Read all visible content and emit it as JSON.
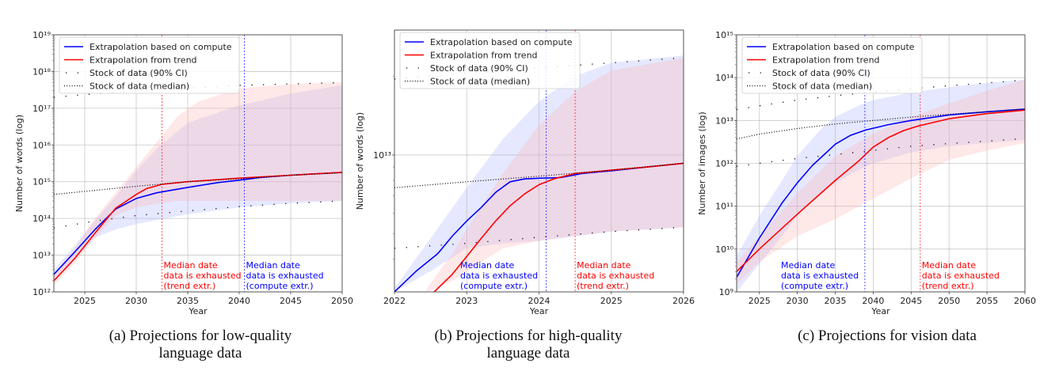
{
  "figure": {
    "captions": [
      "(a) Projections for low-quality language data",
      "(b) Projections for high-quality language data",
      "(c) Projections for vision data"
    ],
    "caption_lines": [
      [
        "(a) Projections for low-quality",
        "language data"
      ],
      [
        "(b) Projections for high-quality",
        "language data"
      ],
      [
        "(c) Projections for vision data"
      ]
    ]
  },
  "colors": {
    "compute": "#0000ff",
    "trend": "#ff0000",
    "stock": "#000000",
    "compute_band": "#aab4ff",
    "trend_band": "#ffb4b4",
    "grid": "#b0b0b0"
  },
  "chart_data": [
    {
      "type": "line",
      "id": "a",
      "title": "",
      "xlabel": "Year",
      "ylabel": "Number of words (log)",
      "yscale": "log",
      "xlim": [
        2022,
        2050
      ],
      "ylim": [
        1000000000000.0,
        1e+19
      ],
      "xticks": [
        2025,
        2030,
        2035,
        2040,
        2045,
        2050
      ],
      "yticks_exp": [
        12,
        13,
        14,
        15,
        16,
        17,
        18,
        19
      ],
      "grid": true,
      "legend": {
        "placement": "top-left",
        "entries": [
          {
            "label": "Extrapolation based on compute",
            "style": "solid-blue"
          },
          {
            "label": "Extrapolation from trend",
            "style": "solid-red"
          },
          {
            "label": "Stock of data (90% CI)",
            "style": "sparse-dots"
          },
          {
            "label": "Stock of data (median)",
            "style": "dense-dots"
          }
        ]
      },
      "series": [
        {
          "name": "Extrapolation based on compute",
          "x": [
            2022,
            2024,
            2026,
            2028,
            2030,
            2032,
            2035,
            2038,
            2040,
            2042,
            2045,
            2050
          ],
          "values": [
            3000000000000.0,
            12000000000000.0,
            50000000000000.0,
            180000000000000.0,
            350000000000000.0,
            500000000000000.0,
            700000000000000.0,
            950000000000000.0,
            1100000000000000.0,
            1300000000000000.0,
            1500000000000000.0,
            1800000000000000.0
          ]
        },
        {
          "name": "Extrapolation from trend",
          "x": [
            2022,
            2024,
            2026,
            2028,
            2030,
            2031,
            2032.5,
            2035,
            2040,
            2045,
            2050
          ],
          "values": [
            2000000000000.0,
            8000000000000.0,
            40000000000000.0,
            190000000000000.0,
            450000000000000.0,
            650000000000000.0,
            850000000000000.0,
            1000000000000000.0,
            1250000000000000.0,
            1500000000000000.0,
            1800000000000000.0
          ]
        },
        {
          "name": "Stock of data (median)",
          "x": [
            2022,
            2030,
            2035,
            2040,
            2045,
            2050
          ],
          "values": [
            450000000000000.0,
            750000000000000.0,
            1000000000000000.0,
            1200000000000000.0,
            1500000000000000.0,
            1750000000000000.0
          ]
        },
        {
          "name": "Stock of data (90% CI) upper",
          "x": [
            2022,
            2026,
            2030,
            2035,
            2040,
            2045,
            2050
          ],
          "values": [
            2e+17,
            2.5e+17,
            3e+17,
            3.5e+17,
            4.2e+17,
            4.6e+17,
            5e+17
          ]
        },
        {
          "name": "Stock of data (90% CI) lower",
          "x": [
            2022,
            2026,
            2030,
            2035,
            2040,
            2045,
            2050
          ],
          "values": [
            55000000000000.0,
            85000000000000.0,
            120000000000000.0,
            160000000000000.0,
            210000000000000.0,
            260000000000000.0,
            300000000000000.0
          ]
        }
      ],
      "bands": [
        {
          "name": "compute 90% CI",
          "x": [
            2022,
            2024,
            2026,
            2028,
            2030,
            2032,
            2035,
            2040,
            2045,
            2050
          ],
          "lower": [
            2000000000000.0,
            8000000000000.0,
            30000000000000.0,
            50000000000000.0,
            70000000000000.0,
            90000000000000.0,
            130000000000000.0,
            200000000000000.0,
            260000000000000.0,
            300000000000000.0
          ],
          "upper": [
            4000000000000.0,
            18000000000000.0,
            90000000000000.0,
            400000000000000.0,
            2000000000000000.0,
            8000000000000000.0,
            4e+16,
            1.2e+17,
            2.5e+17,
            4.2e+17
          ]
        },
        {
          "name": "trend 90% CI",
          "x": [
            2022,
            2024,
            2026,
            2028,
            2030,
            2032,
            2034,
            2036,
            2040,
            2045,
            2050
          ],
          "lower": [
            1500000000000.0,
            6000000000000.0,
            30000000000000.0,
            120000000000000.0,
            200000000000000.0,
            250000000000000.0,
            300000000000000.0,
            300000000000000.0,
            300000000000000.0,
            300000000000000.0,
            300000000000000.0
          ],
          "upper": [
            3000000000000.0,
            15000000000000.0,
            100000000000000.0,
            500000000000000.0,
            2500000000000000.0,
            1.2e+16,
            6e+16,
            1.5e+17,
            3.5e+17,
            4.5e+17,
            5.2e+17
          ]
        }
      ],
      "vlines": [
        {
          "x": 2032.5,
          "color": "trend",
          "label": [
            "Median date",
            "data is exhausted",
            "(trend extr.)"
          ]
        },
        {
          "x": 2040.5,
          "color": "compute",
          "label": [
            "Median date",
            "data is exhausted",
            "(compute extr.)"
          ]
        }
      ]
    },
    {
      "type": "line",
      "id": "b",
      "title": "",
      "xlabel": "Year",
      "ylabel": "Number of words (log)",
      "yscale": "log",
      "xlim": [
        2022,
        2026
      ],
      "ylim": [
        3000000000000.0,
        30000000000000.0
      ],
      "xticks": [
        2022,
        2023,
        2024,
        2025,
        2026
      ],
      "yticks_exp": [
        13
      ],
      "grid": true,
      "legend": {
        "placement": "top-left",
        "entries": [
          {
            "label": "Extrapolation based on compute",
            "style": "solid-blue"
          },
          {
            "label": "Extrapolation from trend",
            "style": "solid-red"
          },
          {
            "label": "Stock of data (90% CI)",
            "style": "sparse-dots"
          },
          {
            "label": "Stock of data (median)",
            "style": "dense-dots"
          }
        ]
      },
      "series": [
        {
          "name": "Extrapolation based on compute",
          "x": [
            2022,
            2022.3,
            2022.6,
            2022.8,
            2023,
            2023.2,
            2023.4,
            2023.6,
            2023.8,
            2024,
            2024.3,
            2024.6,
            2025,
            2025.5,
            2026
          ],
          "values": [
            3000000000000.0,
            3600000000000.0,
            4200000000000.0,
            4900000000000.0,
            5600000000000.0,
            6300000000000.0,
            7200000000000.0,
            7900000000000.0,
            8100000000000.0,
            8150000000000.0,
            8200000000000.0,
            8500000000000.0,
            8700000000000.0,
            9000000000000.0,
            9300000000000.0
          ]
        },
        {
          "name": "Extrapolation from trend",
          "x": [
            2022.55,
            2022.8,
            2023,
            2023.2,
            2023.4,
            2023.6,
            2023.8,
            2024,
            2024.2,
            2024.5,
            2025,
            2025.5,
            2026
          ],
          "values": [
            3000000000000.0,
            3500000000000.0,
            4100000000000.0,
            4800000000000.0,
            5600000000000.0,
            6400000000000.0,
            7100000000000.0,
            7700000000000.0,
            8100000000000.0,
            8500000000000.0,
            8750000000000.0,
            9000000000000.0,
            9300000000000.0
          ]
        },
        {
          "name": "Stock of data (median)",
          "x": [
            2022,
            2023,
            2024,
            2025,
            2026
          ],
          "values": [
            7500000000000.0,
            7900000000000.0,
            8300000000000.0,
            8750000000000.0,
            9300000000000.0
          ]
        },
        {
          "name": "Stock of data (90% CI) upper",
          "x": [
            2022,
            2023,
            2024,
            2025,
            2026
          ],
          "values": [
            19500000000000.0,
            20500000000000.0,
            21500000000000.0,
            22500000000000.0,
            23500000000000.0
          ]
        },
        {
          "name": "Stock of data (90% CI) lower",
          "x": [
            2022,
            2023,
            2024,
            2025,
            2026
          ],
          "values": [
            4400000000000.0,
            4600000000000.0,
            4850000000000.0,
            5100000000000.0,
            5300000000000.0
          ]
        }
      ],
      "bands": [
        {
          "name": "compute 90% CI",
          "x": [
            2022,
            2022.5,
            2023,
            2023.5,
            2024,
            2024.5,
            2025,
            2026
          ],
          "lower": [
            3000000000000.0,
            3600000000000.0,
            4400000000000.0,
            4600000000000.0,
            4700000000000.0,
            4900000000000.0,
            5100000000000.0,
            5300000000000.0
          ],
          "upper": [
            3100000000000.0,
            4800000000000.0,
            7500000000000.0,
            11500000000000.0,
            16000000000000.0,
            20000000000000.0,
            22500000000000.0,
            24000000000000.0
          ]
        },
        {
          "name": "trend 90% CI",
          "x": [
            2022.45,
            2022.8,
            2023,
            2023.5,
            2024,
            2024.5,
            2025,
            2026
          ],
          "lower": [
            3000000000000.0,
            3300000000000.0,
            3600000000000.0,
            4400000000000.0,
            4700000000000.0,
            4900000000000.0,
            5100000000000.0,
            5300000000000.0
          ],
          "upper": [
            3100000000000.0,
            4200000000000.0,
            5200000000000.0,
            8500000000000.0,
            13000000000000.0,
            17500000000000.0,
            21000000000000.0,
            23500000000000.0
          ]
        }
      ],
      "vlines": [
        {
          "x": 2024.1,
          "color": "compute",
          "label": [
            "Median date",
            "data is exhausted",
            "(compute extr.)"
          ]
        },
        {
          "x": 2024.5,
          "color": "trend",
          "label": [
            "Median date",
            "data is exhausted",
            "(trend extr.)"
          ]
        }
      ]
    },
    {
      "type": "line",
      "id": "c",
      "title": "",
      "xlabel": "Year",
      "ylabel": "Number of images (log)",
      "yscale": "log",
      "xlim": [
        2022,
        2060
      ],
      "ylim": [
        1000000000.0,
        1000000000000000.0
      ],
      "xticks": [
        2025,
        2030,
        2035,
        2040,
        2045,
        2050,
        2055,
        2060
      ],
      "yticks_exp": [
        9,
        10,
        11,
        12,
        13,
        14,
        15
      ],
      "grid": true,
      "legend": {
        "placement": "top-left",
        "entries": [
          {
            "label": "Extrapolation based on compute",
            "style": "solid-blue"
          },
          {
            "label": "Extrapolation from trend",
            "style": "solid-red"
          },
          {
            "label": "Stock of data (90% CI)",
            "style": "sparse-dots"
          },
          {
            "label": "Stock of data (median)",
            "style": "dense-dots"
          }
        ]
      },
      "series": [
        {
          "name": "Extrapolation based on compute",
          "x": [
            2022,
            2025,
            2028,
            2030,
            2032,
            2034,
            2035,
            2037,
            2039,
            2042,
            2045,
            2050,
            2055,
            2060
          ],
          "values": [
            2200000000.0,
            18000000000.0,
            120000000000.0,
            350000000000.0,
            900000000000.0,
            1900000000000.0,
            2800000000000.0,
            4500000000000.0,
            6000000000000.0,
            8000000000000.0,
            10000000000000.0,
            13500000000000.0,
            16000000000000.0,
            18500000000000.0
          ]
        },
        {
          "name": "Extrapolation from trend",
          "x": [
            2022,
            2025,
            2030,
            2035,
            2038,
            2040,
            2042,
            2044,
            2046,
            2050,
            2055,
            2060
          ],
          "values": [
            3000000000.0,
            10000000000.0,
            65000000000.0,
            400000000000.0,
            1100000000000.0,
            2400000000000.0,
            4000000000000.0,
            5800000000000.0,
            7500000000000.0,
            11000000000000.0,
            14500000000000.0,
            17500000000000.0
          ]
        },
        {
          "name": "Stock of data (median)",
          "x": [
            2022,
            2025,
            2030,
            2035,
            2040,
            2045,
            2050,
            2055,
            2060
          ],
          "values": [
            3700000000000.0,
            4800000000000.0,
            6500000000000.0,
            8300000000000.0,
            10000000000000.0,
            12000000000000.0,
            14000000000000.0,
            16000000000000.0,
            18500000000000.0
          ]
        },
        {
          "name": "Stock of data (90% CI) upper",
          "x": [
            2022,
            2025,
            2030,
            2035,
            2040,
            2045,
            2050,
            2055,
            2060
          ],
          "values": [
            18000000000000.0,
            22000000000000.0,
            30000000000000.0,
            38000000000000.0,
            46000000000000.0,
            55000000000000.0,
            65000000000000.0,
            75000000000000.0,
            88000000000000.0
          ]
        },
        {
          "name": "Stock of data (90% CI) lower",
          "x": [
            2022,
            2025,
            2030,
            2035,
            2040,
            2045,
            2050,
            2055,
            2060
          ],
          "values": [
            850000000000.0,
            1000000000000.0,
            1300000000000.0,
            1600000000000.0,
            2000000000000.0,
            2500000000000.0,
            2900000000000.0,
            3300000000000.0,
            3800000000000.0
          ]
        }
      ],
      "bands": [
        {
          "name": "compute 90% CI",
          "x": [
            2022,
            2025,
            2028,
            2030,
            2033,
            2035,
            2038,
            2040,
            2045,
            2050,
            2055,
            2060
          ],
          "lower": [
            1000000000.0,
            4500000000.0,
            20000000000.0,
            60000000000.0,
            200000000000.0,
            350000000000.0,
            700000000000.0,
            1000000000000.0,
            1800000000000.0,
            2500000000000.0,
            3000000000000.0,
            3500000000000.0
          ],
          "upper": [
            7000000000.0,
            60000000000.0,
            400000000000.0,
            1500000000000.0,
            6000000000000.0,
            12000000000000.0,
            22000000000000.0,
            30000000000000.0,
            45000000000000.0,
            60000000000000.0,
            75000000000000.0,
            90000000000000.0
          ]
        },
        {
          "name": "trend 90% CI",
          "x": [
            2022,
            2025,
            2030,
            2035,
            2040,
            2045,
            2050,
            2055,
            2060
          ],
          "lower": [
            1500000000.0,
            5000000000.0,
            20000000000.0,
            50000000000.0,
            150000000000.0,
            450000000000.0,
            1200000000000.0,
            2000000000000.0,
            3000000000000.0
          ],
          "upper": [
            5000000000.0,
            20000000000.0,
            200000000000.0,
            1500000000000.0,
            5000000000000.0,
            12000000000000.0,
            25000000000000.0,
            50000000000000.0,
            90000000000000.0
          ]
        }
      ],
      "vlines": [
        {
          "x": 2038.9,
          "color": "compute",
          "label": [
            "Median date",
            "data is exhausted",
            "(compute extr.)"
          ]
        },
        {
          "x": 2046.2,
          "color": "trend",
          "label": [
            "Median date",
            "data is exhausted",
            "(trend extr.)"
          ]
        }
      ]
    }
  ]
}
